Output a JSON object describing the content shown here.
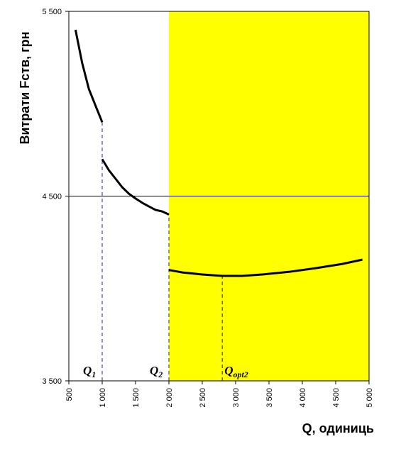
{
  "chart_data": {
    "type": "line",
    "y_label": "Витрати  Fств, грн",
    "x_label": "Q, одиниць",
    "x": [
      600,
      700,
      800,
      900,
      1000,
      1000,
      1000,
      1100,
      1200,
      1300,
      1400,
      1500,
      1600,
      1700,
      1800,
      1900,
      2000,
      2000,
      2000,
      2200,
      2500,
      2800,
      3100,
      3400,
      3800,
      4200,
      4600,
      4900
    ],
    "values": [
      5400,
      5220,
      5080,
      4990,
      4900,
      null,
      4700,
      4640,
      4594,
      4548,
      4513,
      4487,
      4464,
      4444,
      4425,
      4417,
      4400,
      null,
      4100,
      4087,
      4076,
      4068,
      4068,
      4076,
      4090,
      4110,
      4133,
      4156
    ],
    "color": "#000000",
    "xlim": [
      500,
      5000
    ],
    "ylim": [
      3500,
      5500
    ],
    "xticks": [
      500,
      {
        "value": 1000,
        "label": "1 000"
      },
      {
        "value": 1500,
        "label": "1 500"
      },
      {
        "value": 2000,
        "label": "2 000"
      },
      {
        "value": 2500,
        "label": "2 500"
      },
      {
        "value": 3000,
        "label": "3 000"
      },
      {
        "value": 3500,
        "label": "3 500"
      },
      {
        "value": 4000,
        "label": "4 000"
      },
      {
        "value": 4500,
        "label": "4 500"
      },
      {
        "value": 5000,
        "label": "5 000"
      }
    ],
    "yticks": [
      {
        "value": 3500,
        "label": "3 500"
      },
      {
        "value": 4500,
        "label": "4 500"
      },
      {
        "value": 5500,
        "label": "5 500"
      }
    ],
    "grid": true,
    "shaded_region": {
      "x": [
        2000,
        5000
      ],
      "color": "#ffff00"
    },
    "reference_lines": [
      {
        "label": "Q",
        "subscript": "1",
        "x": 1000,
        "y": 4900
      },
      {
        "label": "Q",
        "subscript": "2",
        "x": 2000,
        "y": 4400
      },
      {
        "label": "Q",
        "subscript": "opt2",
        "x": 2800,
        "y": 4068
      }
    ]
  }
}
